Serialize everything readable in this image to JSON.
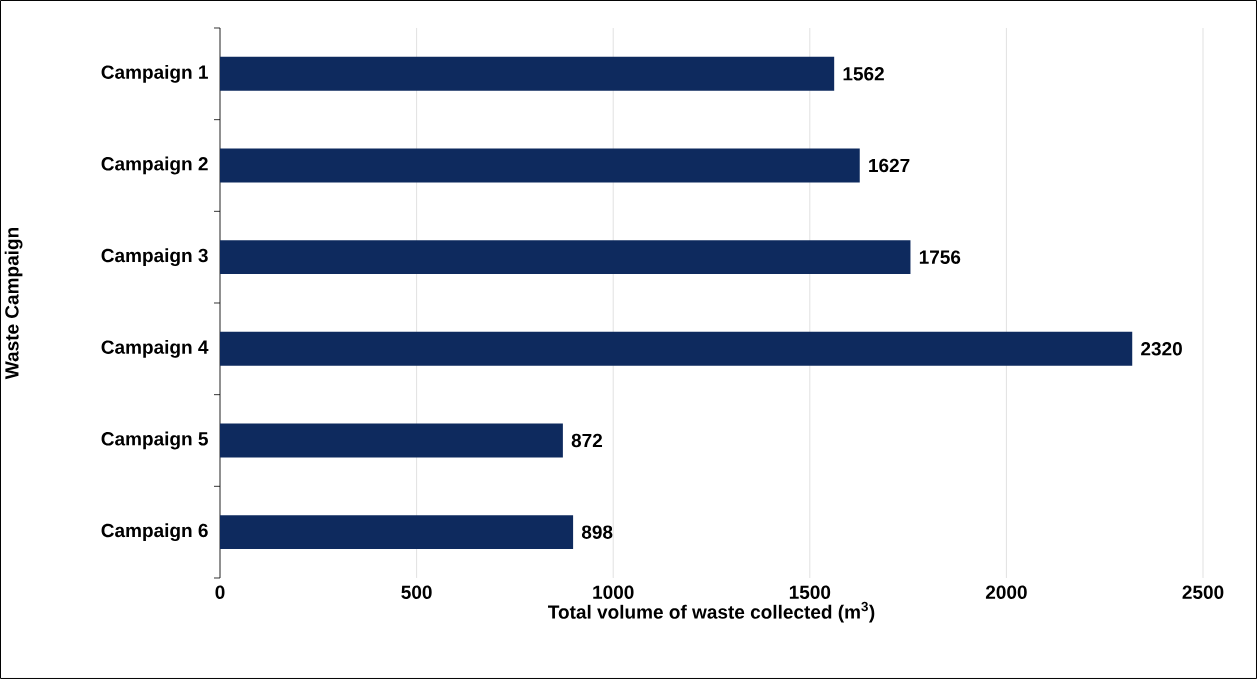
{
  "chart_data": {
    "type": "bar",
    "orientation": "horizontal",
    "xlabel": "Total volume of waste collected (m$^{3}$)",
    "ylabel": "Waste Campaign",
    "categories": [
      "Campaign 1",
      "Campaign 2",
      "Campaign 3",
      "Campaign 4",
      "Campaign 5",
      "Campaign 6"
    ],
    "values": [
      1562,
      1627,
      1756,
      2320,
      872,
      898
    ],
    "color": "#0e2a5e",
    "xlim": [
      0,
      2500
    ],
    "xticks": [
      0,
      500,
      1000,
      1500,
      2000,
      2500
    ],
    "grid": "x",
    "data_labels": true
  }
}
